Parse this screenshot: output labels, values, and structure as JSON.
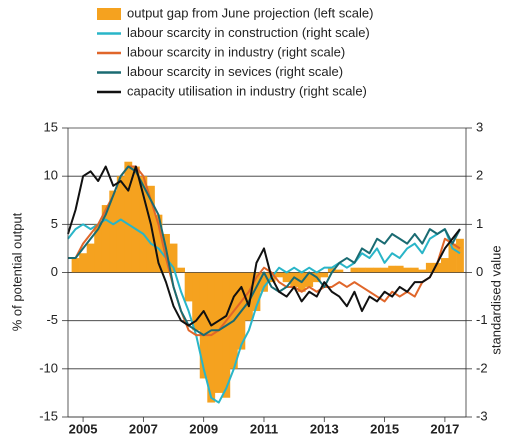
{
  "chart_data": {
    "type": "bar",
    "y_label": "% of potential output",
    "y2_label": "standardised value",
    "x": [
      2004.5,
      2004.75,
      2005,
      2005.25,
      2005.5,
      2005.75,
      2006,
      2006.25,
      2006.5,
      2006.75,
      2007,
      2007.25,
      2007.5,
      2007.75,
      2008,
      2008.25,
      2008.5,
      2008.75,
      2009,
      2009.25,
      2009.5,
      2009.75,
      2010,
      2010.25,
      2010.5,
      2010.75,
      2011,
      2011.25,
      2011.5,
      2011.75,
      2012,
      2012.25,
      2012.5,
      2012.75,
      2013,
      2013.25,
      2013.5,
      2013.75,
      2014,
      2014.25,
      2014.5,
      2014.75,
      2015,
      2015.25,
      2015.5,
      2015.75,
      2016,
      2016.25,
      2016.5,
      2016.75,
      2017,
      2017.25,
      2017.5
    ],
    "xlim": [
      2004.5,
      2017.7
    ],
    "xticks": [
      2005,
      2007,
      2009,
      2011,
      2013,
      2015,
      2017
    ],
    "ylim": [
      -15,
      15
    ],
    "yticks": [
      15,
      10,
      5,
      0,
      -5,
      -10,
      -15
    ],
    "y2lim": [
      -3,
      3
    ],
    "y2ticks": [
      3,
      2,
      1,
      0,
      -1,
      -2,
      -3
    ],
    "grid": true,
    "series": [
      {
        "name": "output gap from June projection (left scale)",
        "type": "bar",
        "axis": "y",
        "color": "#f5a21f",
        "values": [
          null,
          1.5,
          2,
          3,
          5,
          7,
          8.5,
          10,
          11.5,
          11,
          10,
          9,
          6,
          4,
          3,
          0.5,
          -3,
          -6,
          -11,
          -13.5,
          -12.5,
          -13,
          -10,
          -8,
          -5,
          -4,
          -2,
          -1,
          -0.5,
          -1,
          -1.5,
          -2,
          -1.5,
          -1,
          -0.5,
          0.5,
          0.3,
          0,
          0.5,
          0.5,
          0.5,
          0.5,
          0.5,
          0.7,
          0.7,
          0.5,
          0.5,
          0.3,
          1,
          1,
          1.5,
          3,
          3.5
        ]
      },
      {
        "name": "labour scarcity in construction (right scale)",
        "type": "line",
        "axis": "y2",
        "color": "#29b5c8",
        "values": [
          0.7,
          0.9,
          1.0,
          0.9,
          1.0,
          1.1,
          1.0,
          1.1,
          1.0,
          0.9,
          0.8,
          0.6,
          0.5,
          0.3,
          0.1,
          -0.4,
          -0.8,
          -1.3,
          -2.0,
          -2.6,
          -2.7,
          -2.4,
          -2.0,
          -1.5,
          -1.2,
          -0.7,
          -0.3,
          -0.1,
          0.1,
          0.0,
          0.1,
          0.0,
          0.1,
          0.0,
          0.1,
          0.1,
          0.2,
          0.1,
          0.2,
          0.4,
          0.3,
          0.5,
          0.2,
          0.4,
          0.3,
          0.5,
          0.6,
          0.4,
          0.7,
          0.8,
          0.9,
          0.5,
          0.4
        ]
      },
      {
        "name": "labour scarcity in industry (right scale)",
        "type": "line",
        "axis": "y2",
        "color": "#e0662a",
        "values": [
          0.3,
          0.3,
          0.6,
          0.8,
          1.0,
          1.3,
          1.6,
          2.0,
          2.2,
          2.2,
          2.0,
          1.5,
          1.0,
          0.3,
          -0.3,
          -0.8,
          -1.2,
          -1.3,
          -1.3,
          -1.3,
          -1.2,
          -1.0,
          -0.8,
          -0.6,
          -0.4,
          -0.1,
          0.1,
          0.0,
          -0.2,
          -0.3,
          -0.3,
          -0.4,
          -0.3,
          -0.4,
          -0.3,
          -0.3,
          -0.2,
          -0.3,
          -0.2,
          -0.3,
          -0.4,
          -0.5,
          -0.6,
          -0.4,
          -0.5,
          -0.4,
          -0.5,
          -0.2,
          -0.1,
          0.2,
          0.7,
          0.6,
          0.5
        ]
      },
      {
        "name": "labour scarcity in sevices (right scale)",
        "type": "line",
        "axis": "y2",
        "color": "#1a6b72",
        "values": [
          0.3,
          0.3,
          0.5,
          0.7,
          0.9,
          1.2,
          1.6,
          2.0,
          2.2,
          2.1,
          1.8,
          1.5,
          1.2,
          0.5,
          -0.3,
          -0.8,
          -1.1,
          -1.2,
          -1.3,
          -1.2,
          -1.2,
          -1.1,
          -1.0,
          -0.8,
          -0.6,
          -0.3,
          0.0,
          -0.3,
          -0.4,
          -0.3,
          -0.1,
          -0.2,
          0.0,
          -0.1,
          -0.3,
          0.0,
          0.2,
          0.3,
          0.2,
          0.5,
          0.4,
          0.7,
          0.6,
          0.8,
          0.7,
          0.6,
          0.8,
          0.6,
          0.9,
          0.8,
          0.9,
          0.6,
          0.9
        ]
      },
      {
        "name": "capacity utilisation in industry (right scale)",
        "type": "line",
        "axis": "y2",
        "color": "#111111",
        "values": [
          0.8,
          1.3,
          2.0,
          2.1,
          1.9,
          2.2,
          1.8,
          1.9,
          1.7,
          2.2,
          1.6,
          1.0,
          0.2,
          -0.2,
          -0.7,
          -1.0,
          -1.1,
          -1.0,
          -0.8,
          -1.1,
          -1.0,
          -0.9,
          -0.5,
          -0.3,
          -0.7,
          0.2,
          0.5,
          -0.1,
          -0.4,
          -0.5,
          -0.3,
          -0.6,
          -0.4,
          -0.5,
          -0.2,
          -0.4,
          -0.5,
          -0.7,
          -0.4,
          -0.8,
          -0.5,
          -0.6,
          -0.4,
          -0.5,
          -0.3,
          -0.4,
          -0.2,
          -0.2,
          -0.1,
          0.2,
          0.5,
          0.7,
          0.9
        ]
      }
    ]
  }
}
